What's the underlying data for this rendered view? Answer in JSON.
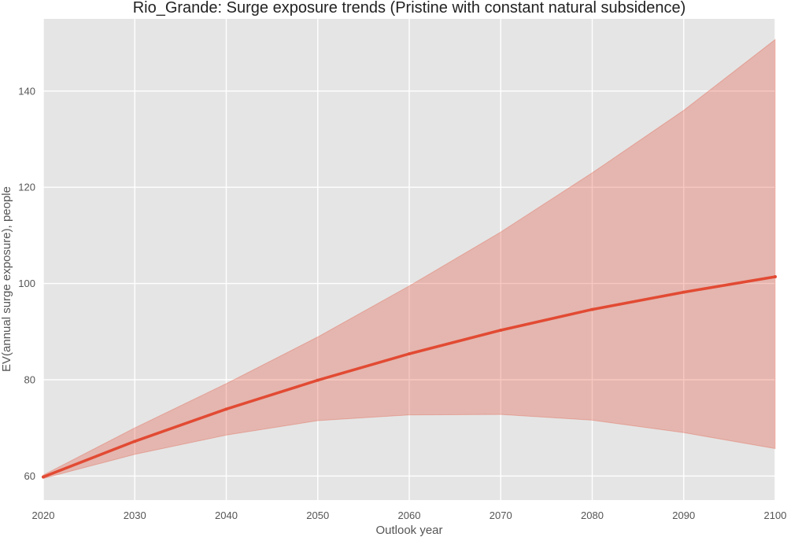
{
  "chart_data": {
    "type": "line",
    "title": "Rio_Grande: Surge exposure trends (Pristine with constant natural subsidence)",
    "xlabel": "Outlook year",
    "ylabel": "EV(annual surge exposure), people",
    "xlim": [
      2020,
      2100
    ],
    "ylim": [
      55,
      155
    ],
    "x_ticks": [
      2020,
      2030,
      2040,
      2050,
      2060,
      2070,
      2080,
      2090,
      2100
    ],
    "y_ticks": [
      60,
      80,
      100,
      120,
      140
    ],
    "grid": true,
    "legend": "none",
    "x": [
      2020,
      2030,
      2040,
      2050,
      2060,
      2070,
      2080,
      2090,
      2100
    ],
    "series": [
      {
        "values": [
          59.8,
          67.2,
          73.9,
          79.9,
          85.4,
          90.3,
          94.6,
          98.2,
          101.4
        ],
        "band_lower": [
          59.5,
          64.5,
          68.5,
          71.5,
          72.7,
          72.8,
          71.6,
          69.0,
          65.7
        ],
        "band_upper": [
          60.2,
          70.0,
          79.2,
          88.9,
          99.5,
          110.7,
          123.0,
          136.0,
          150.7
        ],
        "color": "#e24a33",
        "band_color": "#e24a33"
      }
    ],
    "colors": {
      "plot_background": "#e5e5e5",
      "grid": "#ffffff"
    }
  }
}
